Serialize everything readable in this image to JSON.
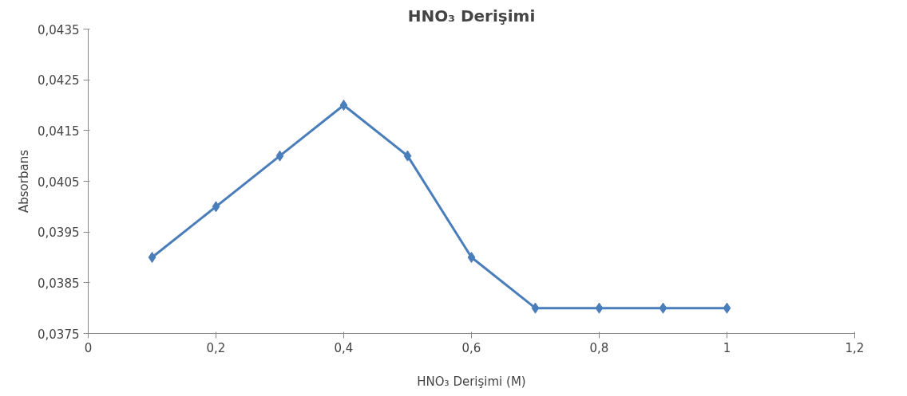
{
  "chart_data": {
    "type": "line",
    "title": "HNO₃ Derişimi",
    "xlabel": "HNO₃ Derişimi (M)",
    "ylabel": "Absorbans",
    "x": [
      0.1,
      0.2,
      0.3,
      0.4,
      0.5,
      0.6,
      0.7,
      0.8,
      0.9,
      1.0
    ],
    "series": [
      {
        "color": "#4a7ebb",
        "values": [
          0.039,
          0.04,
          0.041,
          0.042,
          0.041,
          0.039,
          0.038,
          0.038,
          0.038,
          0.038
        ]
      }
    ],
    "xlim": [
      0,
      1.2
    ],
    "xticks": [
      0,
      {
        "value": 0.2,
        "label": "0,2"
      },
      {
        "value": 0.4,
        "label": "0,4"
      },
      {
        "value": 0.6,
        "label": "0,6"
      },
      {
        "value": 0.8,
        "label": "0,8"
      },
      1,
      {
        "value": 1.2,
        "label": "1,2"
      }
    ],
    "ylim": [
      0.0375,
      0.0435
    ],
    "yticks": [
      {
        "value": 0.0375,
        "label": "0,0375"
      },
      {
        "value": 0.0385,
        "label": "0,0385"
      },
      {
        "value": 0.0395,
        "label": "0,0395"
      },
      {
        "value": 0.0405,
        "label": "0,0405"
      },
      {
        "value": 0.0415,
        "label": "0,0415"
      },
      {
        "value": 0.0425,
        "label": "0,0425"
      },
      {
        "value": 0.0435,
        "label": "0,0435"
      }
    ],
    "grid": false,
    "marker": "diamond",
    "line_style": "solid"
  }
}
